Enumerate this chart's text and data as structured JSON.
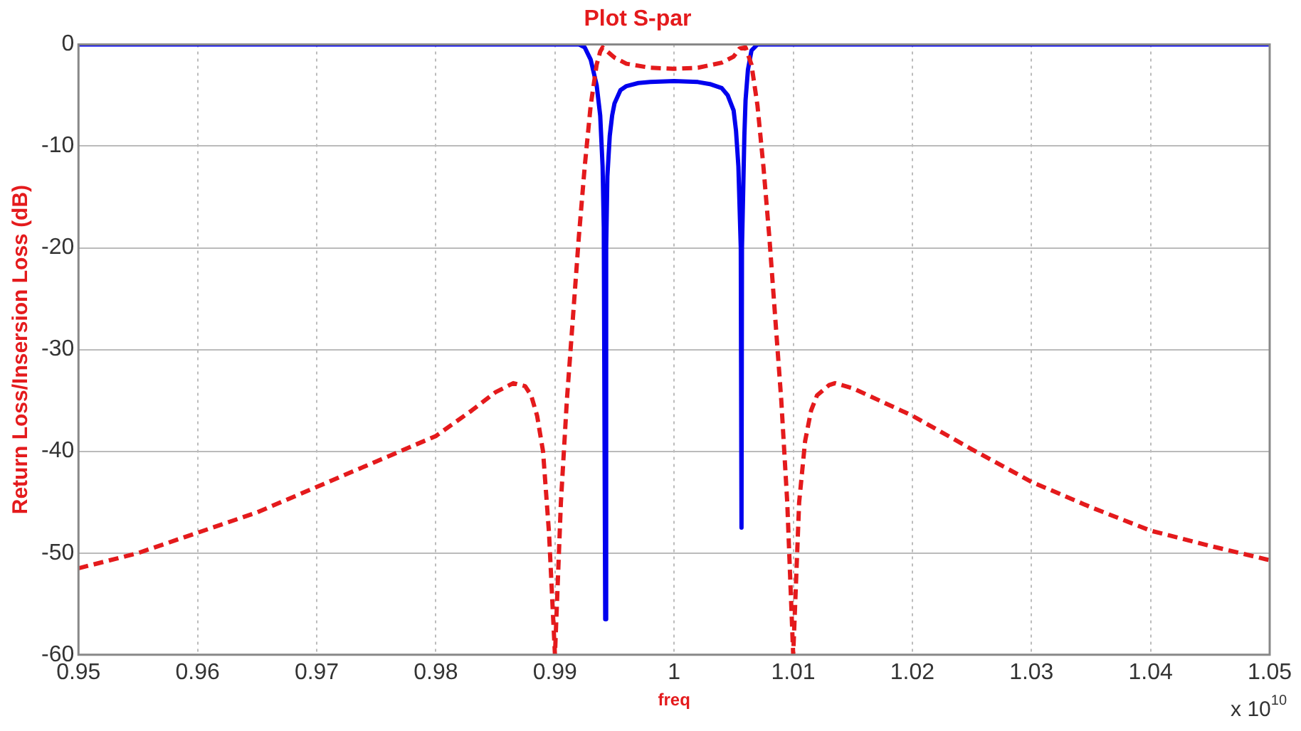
{
  "chart_data": {
    "type": "line",
    "title": "Plot S-par",
    "xlabel": "freq",
    "ylabel": "Return Loss/Insersion Loss (dB)",
    "annotations": [
      "x 10$^{10}$"
    ],
    "xlim": [
      0.95,
      1.05
    ],
    "xticks": [
      0.95,
      0.96,
      0.97,
      0.98,
      0.99,
      1,
      1.01,
      1.02,
      1.03,
      1.04,
      1.05
    ],
    "ylim": [
      -60,
      0
    ],
    "yticks": [
      0,
      -10,
      -20,
      -30,
      -40,
      -50,
      -60
    ],
    "grid": true,
    "legend": false,
    "marker": "none",
    "series": [
      {
        "color": "#e41a1c",
        "line_style": "dashed",
        "x": [
          0.95,
          0.955,
          0.96,
          0.965,
          0.97,
          0.975,
          0.98,
          0.983,
          0.985,
          0.9865,
          0.9875,
          0.988,
          0.9885,
          0.989,
          0.9895,
          0.99,
          0.9905,
          0.991,
          0.9915,
          0.992,
          0.9925,
          0.993,
          0.9935,
          0.9938,
          0.994,
          0.9945,
          0.995,
          0.996,
          0.998,
          1,
          1.002,
          1.004,
          1.005,
          1.0055,
          1.006,
          1.0065,
          1.007,
          1.0075,
          1.008,
          1.0085,
          1.009,
          1.0095,
          1.01,
          1.0105,
          1.011,
          1.0115,
          1.012,
          1.013,
          1.0135,
          1.015,
          1.02,
          1.025,
          1.03,
          1.035,
          1.04,
          1.045,
          1.05
        ],
        "values": [
          -51.5,
          -50,
          -48,
          -46,
          -43.5,
          -41,
          -38.5,
          -36,
          -34.2,
          -33.3,
          -33.6,
          -34.5,
          -36.5,
          -40,
          -48,
          -60,
          -45,
          -35,
          -27,
          -19,
          -12,
          -6,
          -2,
          -0.7,
          -0.3,
          -0.8,
          -1.3,
          -1.9,
          -2.3,
          -2.4,
          -2.3,
          -1.8,
          -1.2,
          -0.4,
          -0.3,
          -2,
          -6,
          -12,
          -19,
          -27,
          -35,
          -45,
          -60,
          -45,
          -39,
          -36,
          -34.5,
          -33.5,
          -33.3,
          -33.8,
          -36.5,
          -39.8,
          -43,
          -45.5,
          -47.8,
          -49.3,
          -50.7
        ]
      },
      {
        "color": "#0000ee",
        "line_style": "solid",
        "x": [
          0.95,
          0.99,
          0.992,
          0.9925,
          0.993,
          0.9935,
          0.9938,
          0.994,
          0.9941,
          0.99422,
          0.9943,
          0.9944,
          0.9946,
          0.9948,
          0.995,
          0.9955,
          0.996,
          0.997,
          0.998,
          1,
          1.002,
          1.003,
          1.004,
          1.0045,
          1.005,
          1.0052,
          1.0054,
          1.0056,
          1.00566,
          1.0057,
          1.0059,
          1.006,
          1.0062,
          1.0065,
          1.007,
          1.008,
          1.05
        ],
        "values": [
          0,
          0,
          0,
          -0.3,
          -1.5,
          -4,
          -7,
          -12,
          -18,
          -56.5,
          -20,
          -13,
          -9,
          -7,
          -5.8,
          -4.5,
          -4.1,
          -3.8,
          -3.7,
          -3.6,
          -3.7,
          -3.9,
          -4.3,
          -5,
          -6.5,
          -8.5,
          -12,
          -20,
          -47.5,
          -20,
          -9,
          -5.5,
          -2.5,
          -0.6,
          0,
          0,
          0
        ]
      }
    ]
  }
}
